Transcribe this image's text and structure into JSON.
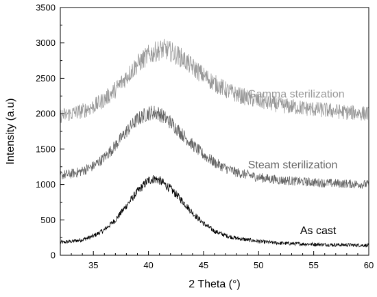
{
  "chart_data": {
    "type": "line",
    "xlabel": "2 Theta (°)",
    "ylabel": "Intensity (a.u)",
    "xlim": [
      32,
      60
    ],
    "ylim": [
      0,
      3500
    ],
    "x_ticks": [
      "35",
      "40",
      "45",
      "50",
      "55",
      "60"
    ],
    "y_ticks": [
      "0",
      "500",
      "1000",
      "1500",
      "2000",
      "2500",
      "3000",
      "3500"
    ],
    "grid": false,
    "legend": "none",
    "series": [
      {
        "name": "As cast",
        "color": "#000000",
        "x": [
          32,
          33,
          34,
          35,
          36,
          37,
          38,
          39,
          40,
          40.5,
          41,
          42,
          43,
          44,
          45,
          46,
          47,
          48,
          50,
          52,
          54,
          56,
          58,
          60
        ],
        "y": [
          180,
          195,
          220,
          270,
          360,
          500,
          700,
          900,
          1060,
          1080,
          1060,
          940,
          780,
          600,
          450,
          340,
          280,
          240,
          195,
          170,
          160,
          150,
          145,
          140
        ]
      },
      {
        "name": "Steam sterilization",
        "color": "#666666",
        "x": [
          32,
          33,
          34,
          35,
          36,
          37,
          38,
          39,
          40,
          40.5,
          41,
          42,
          43,
          44,
          45,
          46,
          47,
          48,
          50,
          52,
          54,
          56,
          58,
          60
        ],
        "y": [
          1130,
          1150,
          1190,
          1260,
          1380,
          1550,
          1750,
          1920,
          2010,
          2020,
          2000,
          1880,
          1720,
          1560,
          1420,
          1310,
          1230,
          1170,
          1100,
          1060,
          1040,
          1020,
          1010,
          1000
        ]
      },
      {
        "name": "Gamma sterilization",
        "color": "#999999",
        "x": [
          32,
          33,
          34,
          35,
          36,
          37,
          38,
          39,
          40,
          41,
          41.5,
          42,
          43,
          44,
          45,
          46,
          47,
          48,
          50,
          52,
          54,
          56,
          58,
          60
        ],
        "y": [
          1970,
          2000,
          2040,
          2100,
          2200,
          2340,
          2520,
          2700,
          2830,
          2900,
          2910,
          2880,
          2790,
          2660,
          2540,
          2430,
          2340,
          2270,
          2180,
          2120,
          2080,
          2050,
          2020,
          2000
        ]
      }
    ],
    "annotations": [
      {
        "text": "Gamma sterilization",
        "x": 53.4,
        "y": 2230,
        "color": "#999999"
      },
      {
        "text": "Steam sterilization",
        "x": 53.1,
        "y": 1230,
        "color": "#666666"
      },
      {
        "text": "As cast",
        "x": 55.4,
        "y": 300,
        "color": "#000000"
      }
    ]
  }
}
